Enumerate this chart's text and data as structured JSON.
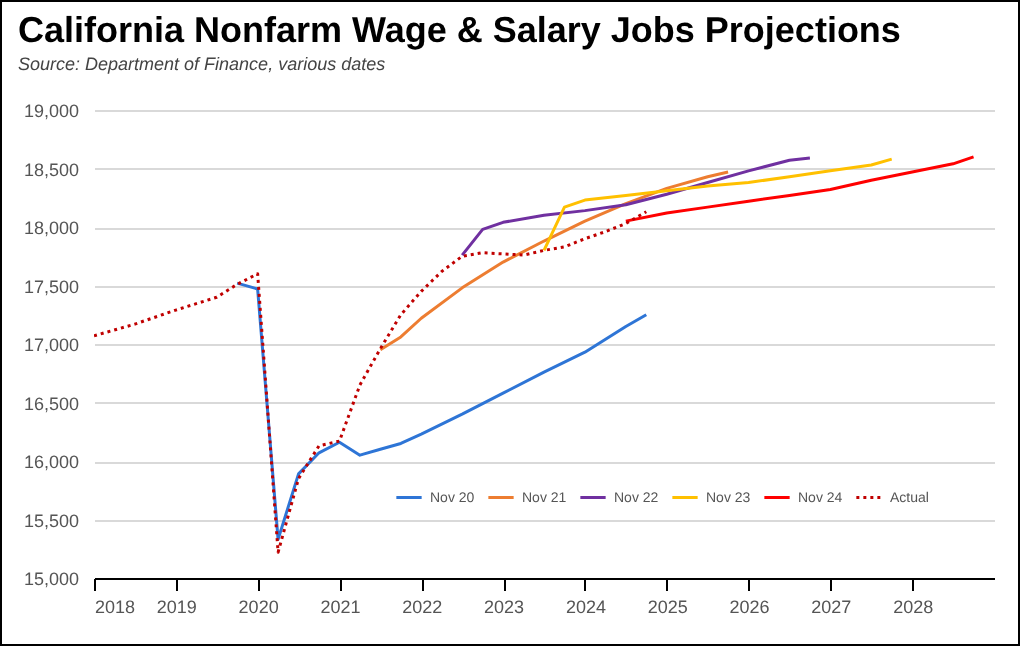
{
  "chart_data": {
    "type": "line",
    "title": "California Nonfarm Wage & Salary Jobs Projections",
    "subtitle": "Source:  Department of Finance, various dates",
    "xlim": [
      2018,
      2029
    ],
    "xticks": [
      2018,
      2019,
      2020,
      2021,
      2022,
      2023,
      2024,
      2025,
      2026,
      2027,
      2028
    ],
    "ylim": [
      15000,
      19000
    ],
    "yticks": [
      {
        "value": 15000,
        "label": "15,000"
      },
      {
        "value": 15500,
        "label": "15,500"
      },
      {
        "value": 16000,
        "label": "16,000"
      },
      {
        "value": 16500,
        "label": "16,500"
      },
      {
        "value": 17000,
        "label": "17,000"
      },
      {
        "value": 17500,
        "label": "17,500"
      },
      {
        "value": 18000,
        "label": "18,000"
      },
      {
        "value": 18500,
        "label": "18,500"
      },
      {
        "value": 19000,
        "label": "19,000"
      }
    ],
    "grid": "y",
    "legend": "bottom right",
    "series": [
      {
        "name": "Nov 20",
        "color": "#2e75d6",
        "line_style": "solid",
        "x": [
          2019.75,
          2020,
          2020.25,
          2020.5,
          2020.75,
          2021,
          2021.25,
          2021.5,
          2021.75,
          2022,
          2022.5,
          2023,
          2023.5,
          2024,
          2024.5,
          2024.75
        ],
        "values": [
          17520,
          17470,
          15330,
          15890,
          16070,
          16160,
          16050,
          16100,
          16150,
          16230,
          16400,
          16580,
          16760,
          16930,
          17150,
          17250
        ]
      },
      {
        "name": "Nov 21",
        "color": "#ed7d31",
        "line_style": "solid",
        "x": [
          2021.5,
          2021.75,
          2022,
          2022.5,
          2023,
          2023.5,
          2024,
          2024.5,
          2025,
          2025.5,
          2025.75
        ],
        "values": [
          16950,
          17060,
          17220,
          17480,
          17700,
          17880,
          18050,
          18200,
          18330,
          18430,
          18470
        ]
      },
      {
        "name": "Nov 22",
        "color": "#7030a0",
        "line_style": "solid",
        "x": [
          2022.5,
          2022.75,
          2023,
          2023.5,
          2024,
          2024.5,
          2025,
          2025.5,
          2026,
          2026.5,
          2026.75
        ],
        "values": [
          17760,
          17980,
          18040,
          18100,
          18140,
          18190,
          18280,
          18380,
          18480,
          18570,
          18590
        ]
      },
      {
        "name": "Nov 23",
        "color": "#ffc000",
        "line_style": "solid",
        "x": [
          2023.5,
          2023.75,
          2024,
          2024.5,
          2025,
          2025.5,
          2026,
          2026.5,
          2027,
          2027.5,
          2027.75
        ],
        "values": [
          17800,
          18170,
          18230,
          18270,
          18310,
          18350,
          18380,
          18430,
          18480,
          18530,
          18580
        ]
      },
      {
        "name": "Nov 24",
        "color": "#ff0000",
        "line_style": "solid",
        "x": [
          2024.5,
          2025,
          2025.5,
          2026,
          2026.5,
          2027,
          2027.5,
          2028,
          2028.5,
          2028.75
        ],
        "values": [
          18050,
          18120,
          18170,
          18220,
          18270,
          18320,
          18400,
          18470,
          18540,
          18600
        ]
      },
      {
        "name": "Actual",
        "color": "#c00000",
        "line_style": "dotted",
        "x": [
          2018,
          2018.5,
          2019,
          2019.5,
          2019.75,
          2020,
          2020.25,
          2020.5,
          2020.75,
          2021,
          2021.25,
          2021.5,
          2021.75,
          2022,
          2022.25,
          2022.5,
          2022.75,
          2023,
          2023.25,
          2023.5,
          2023.75,
          2024,
          2024.25,
          2024.5,
          2024.75
        ],
        "values": [
          17070,
          17170,
          17290,
          17400,
          17510,
          17600,
          15220,
          15850,
          16130,
          16170,
          16650,
          16960,
          17250,
          17450,
          17620,
          17750,
          17780,
          17770,
          17760,
          17800,
          17830,
          17900,
          17960,
          18030,
          18130
        ]
      }
    ]
  }
}
